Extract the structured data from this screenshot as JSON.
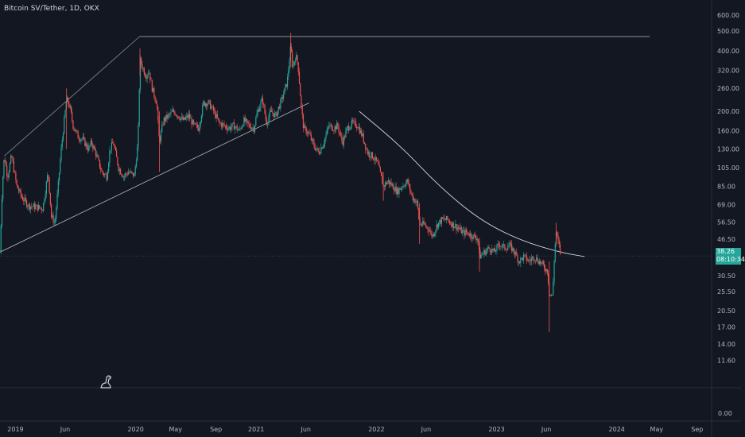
{
  "header": {
    "symbol_line": "Bitcoin SV/Tether, 1D, OKX"
  },
  "last_price": {
    "value": "38.26",
    "countdown": "08:10:34",
    "color": "#26a69a"
  },
  "colors": {
    "background": "#131722",
    "up": "#26a69a",
    "down": "#ef5350",
    "trendline": "#d1d4dc",
    "axis_text": "#b2b5be"
  },
  "icons": {
    "logo": "dinosaur-icon"
  },
  "chart_data": {
    "type": "candlestick",
    "title": "Bitcoin SV/Tether, 1D, OKX",
    "y_scale": "log",
    "ylim": [
      10,
      640
    ],
    "y_ticks": [
      "600.00",
      "500.00",
      "400.00",
      "320.00",
      "260.00",
      "200.00",
      "160.00",
      "130.00",
      "105.00",
      "85.00",
      "69.00",
      "56.50",
      "46.50",
      "38.26",
      "30.50",
      "25.50",
      "20.50",
      "17.00",
      "14.00",
      "11.60"
    ],
    "volume_pane_tick": "0.00",
    "x_ticks": [
      "2019",
      "Jun",
      "2020",
      "May",
      "Sep",
      "2021",
      "Jun",
      "2022",
      "Jun",
      "2023",
      "Jun",
      "2024",
      "May",
      "Sep"
    ],
    "xlim": [
      "2018-11-15",
      "2024-10-15"
    ],
    "price_path": [
      [
        "2018-11-15",
        40
      ],
      [
        "2018-11-22",
        85
      ],
      [
        "2018-11-28",
        120
      ],
      [
        "2018-12-08",
        95
      ],
      [
        "2018-12-20",
        120
      ],
      [
        "2019-01-05",
        85
      ],
      [
        "2019-01-20",
        75
      ],
      [
        "2019-02-10",
        68
      ],
      [
        "2019-03-05",
        67
      ],
      [
        "2019-03-25",
        66
      ],
      [
        "2019-04-10",
        100
      ],
      [
        "2019-04-20",
        60
      ],
      [
        "2019-05-01",
        56
      ],
      [
        "2019-05-20",
        130
      ],
      [
        "2019-06-05",
        230
      ],
      [
        "2019-06-15",
        210
      ],
      [
        "2019-06-25",
        170
      ],
      [
        "2019-07-10",
        150
      ],
      [
        "2019-07-25",
        145
      ],
      [
        "2019-08-10",
        130
      ],
      [
        "2019-08-20",
        140
      ],
      [
        "2019-09-01",
        125
      ],
      [
        "2019-09-20",
        100
      ],
      [
        "2019-10-05",
        95
      ],
      [
        "2019-10-15",
        130
      ],
      [
        "2019-10-25",
        140
      ],
      [
        "2019-11-10",
        105
      ],
      [
        "2019-11-25",
        95
      ],
      [
        "2019-12-10",
        100
      ],
      [
        "2019-12-28",
        96
      ],
      [
        "2020-01-08",
        140
      ],
      [
        "2020-01-14",
        360
      ],
      [
        "2020-01-22",
        330
      ],
      [
        "2020-02-01",
        300
      ],
      [
        "2020-02-10",
        320
      ],
      [
        "2020-02-20",
        260
      ],
      [
        "2020-03-05",
        220
      ],
      [
        "2020-03-13",
        140
      ],
      [
        "2020-03-25",
        180
      ],
      [
        "2020-04-10",
        190
      ],
      [
        "2020-04-25",
        200
      ],
      [
        "2020-05-10",
        190
      ],
      [
        "2020-05-25",
        180
      ],
      [
        "2020-06-10",
        190
      ],
      [
        "2020-06-25",
        170
      ],
      [
        "2020-07-10",
        165
      ],
      [
        "2020-07-25",
        220
      ],
      [
        "2020-08-10",
        220
      ],
      [
        "2020-08-25",
        200
      ],
      [
        "2020-09-10",
        175
      ],
      [
        "2020-09-25",
        170
      ],
      [
        "2020-10-10",
        165
      ],
      [
        "2020-10-25",
        170
      ],
      [
        "2020-11-10",
        160
      ],
      [
        "2020-11-25",
        180
      ],
      [
        "2020-12-10",
        170
      ],
      [
        "2020-12-25",
        165
      ],
      [
        "2021-01-05",
        200
      ],
      [
        "2021-01-20",
        230
      ],
      [
        "2021-02-01",
        175
      ],
      [
        "2021-02-15",
        200
      ],
      [
        "2021-03-01",
        190
      ],
      [
        "2021-03-20",
        230
      ],
      [
        "2021-04-05",
        280
      ],
      [
        "2021-04-16",
        420
      ],
      [
        "2021-04-22",
        330
      ],
      [
        "2021-05-01",
        380
      ],
      [
        "2021-05-08",
        340
      ],
      [
        "2021-05-19",
        200
      ],
      [
        "2021-05-25",
        165
      ],
      [
        "2021-06-10",
        155
      ],
      [
        "2021-06-25",
        135
      ],
      [
        "2021-07-10",
        125
      ],
      [
        "2021-07-25",
        140
      ],
      [
        "2021-08-10",
        170
      ],
      [
        "2021-08-25",
        165
      ],
      [
        "2021-09-05",
        170
      ],
      [
        "2021-09-20",
        140
      ],
      [
        "2021-10-05",
        165
      ],
      [
        "2021-10-20",
        175
      ],
      [
        "2021-11-05",
        170
      ],
      [
        "2021-11-20",
        150
      ],
      [
        "2021-12-05",
        125
      ],
      [
        "2021-12-20",
        120
      ],
      [
        "2022-01-05",
        110
      ],
      [
        "2022-01-22",
        85
      ],
      [
        "2022-02-05",
        90
      ],
      [
        "2022-02-20",
        85
      ],
      [
        "2022-03-05",
        80
      ],
      [
        "2022-03-20",
        85
      ],
      [
        "2022-04-05",
        90
      ],
      [
        "2022-04-20",
        75
      ],
      [
        "2022-05-05",
        70
      ],
      [
        "2022-05-12",
        55
      ],
      [
        "2022-05-25",
        55
      ],
      [
        "2022-06-10",
        52
      ],
      [
        "2022-06-20",
        48
      ],
      [
        "2022-07-05",
        55
      ],
      [
        "2022-07-20",
        58
      ],
      [
        "2022-08-05",
        58
      ],
      [
        "2022-08-20",
        55
      ],
      [
        "2022-09-05",
        53
      ],
      [
        "2022-09-20",
        50
      ],
      [
        "2022-10-05",
        50
      ],
      [
        "2022-10-20",
        48
      ],
      [
        "2022-11-05",
        47
      ],
      [
        "2022-11-10",
        38
      ],
      [
        "2022-11-25",
        40
      ],
      [
        "2022-12-10",
        42
      ],
      [
        "2022-12-25",
        40
      ],
      [
        "2023-01-10",
        44
      ],
      [
        "2023-01-25",
        42
      ],
      [
        "2023-02-10",
        43
      ],
      [
        "2023-02-25",
        40
      ],
      [
        "2023-03-10",
        36
      ],
      [
        "2023-03-25",
        38
      ],
      [
        "2023-04-10",
        36
      ],
      [
        "2023-04-25",
        38
      ],
      [
        "2023-05-10",
        36
      ],
      [
        "2023-05-25",
        34
      ],
      [
        "2023-06-05",
        32
      ],
      [
        "2023-06-10",
        25
      ],
      [
        "2023-06-20",
        24
      ],
      [
        "2023-06-26",
        40
      ],
      [
        "2023-07-01",
        50
      ],
      [
        "2023-07-08",
        44
      ],
      [
        "2023-07-18",
        38
      ]
    ],
    "spikes": [
      [
        "2019-06-05",
        260,
        130
      ],
      [
        "2020-01-14",
        410,
        300
      ],
      [
        "2020-03-13",
        200,
        100
      ],
      [
        "2021-04-16",
        490,
        330
      ],
      [
        "2022-01-22",
        100,
        72
      ],
      [
        "2022-05-12",
        70,
        44
      ],
      [
        "2022-11-10",
        47,
        32
      ],
      [
        "2023-06-10",
        36,
        16
      ],
      [
        "2023-07-01",
        56,
        44
      ]
    ],
    "drawings": {
      "top_line": [
        [
          "2020-01-13",
          470
        ],
        [
          "2024-04-10",
          470
        ]
      ],
      "support_line": [
        [
          "2018-11-15",
          40
        ],
        [
          "2021-06-10",
          220
        ]
      ],
      "upper_channel_line": [
        [
          "2018-11-28",
          120
        ],
        [
          "2020-01-13",
          470
        ]
      ],
      "descending_curve": [
        [
          "2021-11-10",
          200
        ],
        [
          "2022-03-15",
          135
        ],
        [
          "2022-07-10",
          85
        ],
        [
          "2022-11-10",
          58
        ],
        [
          "2023-03-10",
          46
        ],
        [
          "2023-07-10",
          40
        ],
        [
          "2023-09-25",
          38
        ]
      ]
    }
  }
}
